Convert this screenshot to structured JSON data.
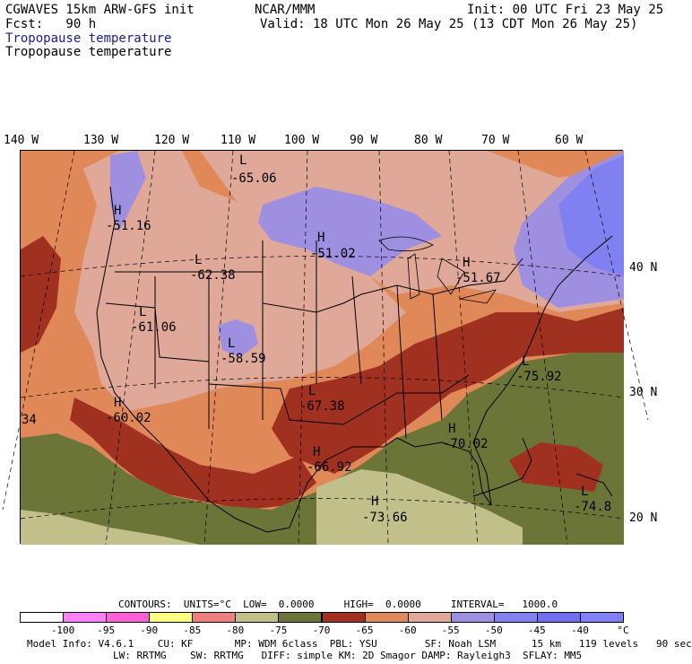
{
  "header": {
    "model": "CGWAVES 15km ARW-GFS init",
    "fcst": "Fcst:   90 h",
    "org": "NCAR/MMM",
    "init": "Init: 00 UTC Fri 23 May 25",
    "valid": "Valid: 18 UTC Mon 26 May 25 (13 CDT Mon 26 May 25)",
    "field_title_1": "Tropopause temperature",
    "field_title_2": "Tropopause temperature"
  },
  "map": {
    "lon_labels": [
      "140 W",
      "130 W",
      "120 W",
      "110 W",
      "100 W",
      "90 W",
      "80 W",
      "70 W",
      "60 W"
    ],
    "lat_labels": [
      "40 N",
      "30 N",
      "20 N"
    ],
    "colors": {
      "lt_minus60": "#9f8fe0",
      "c_minus60_55": "#e0a898",
      "c_minus65_60": "#e08858",
      "c_minus70_65": "#a03020",
      "c_minus75_70": "#6b7538",
      "c_minus80_75": "#c2c08a",
      "lt_minus55": "#8080f0",
      "water_east": "#8080f0"
    },
    "extrema": [
      {
        "type": "L",
        "value": "-65.06"
      },
      {
        "type": "H",
        "value": "-51.16"
      },
      {
        "type": "L",
        "value": "-62.38"
      },
      {
        "type": "H",
        "value": "-51.02"
      },
      {
        "type": "H",
        "value": "-51.67"
      },
      {
        "type": "L",
        "value": "-61.06"
      },
      {
        "type": "L",
        "value": "-58.59"
      },
      {
        "type": "L",
        "value": "-75.92"
      },
      {
        "type": "H",
        "value": "-60.02"
      },
      {
        "type": "L",
        "value": "-67.38"
      },
      {
        "type": "H",
        "value": "-70.02"
      },
      {
        "type": "H",
        "value": "-66.92"
      },
      {
        "type": "H",
        "value": "-73.66"
      },
      {
        "type": "L",
        "value": "-74.8"
      },
      {
        "type": "",
        "value": "34"
      }
    ]
  },
  "footer": {
    "contours_line": "CONTOURS:  UNITS=°C  LOW=  0.0000     HIGH=  0.0000     INTERVAL=   1000.0",
    "colorbar": {
      "colors": [
        "#ffffff",
        "#ff80ff",
        "#ff60d8",
        "#ffff80",
        "#f08080",
        "#c2c08a",
        "#6b7538",
        "#a03020",
        "#e08858",
        "#e0a898",
        "#9f8fe0",
        "#8080f0",
        "#7070f0",
        "#8080f8"
      ],
      "labels": [
        "-100",
        "-95",
        "-90",
        "-85",
        "-80",
        "-75",
        "-70",
        "-65",
        "-60",
        "-55",
        "-50",
        "-45",
        "-40",
        "°C"
      ]
    },
    "model_info_1": "Model Info: V4.6.1    CU: KF       MP: WDM 6class  PBL: YSU        SF: Noah LSM      15 km   119 levels   90 sec",
    "model_info_2": "LW: RRTMG    SW: RRTMG   DIFF: simple KM: 2D Smagor DAMP: Rayleigh3  SFLAY: MM5"
  }
}
